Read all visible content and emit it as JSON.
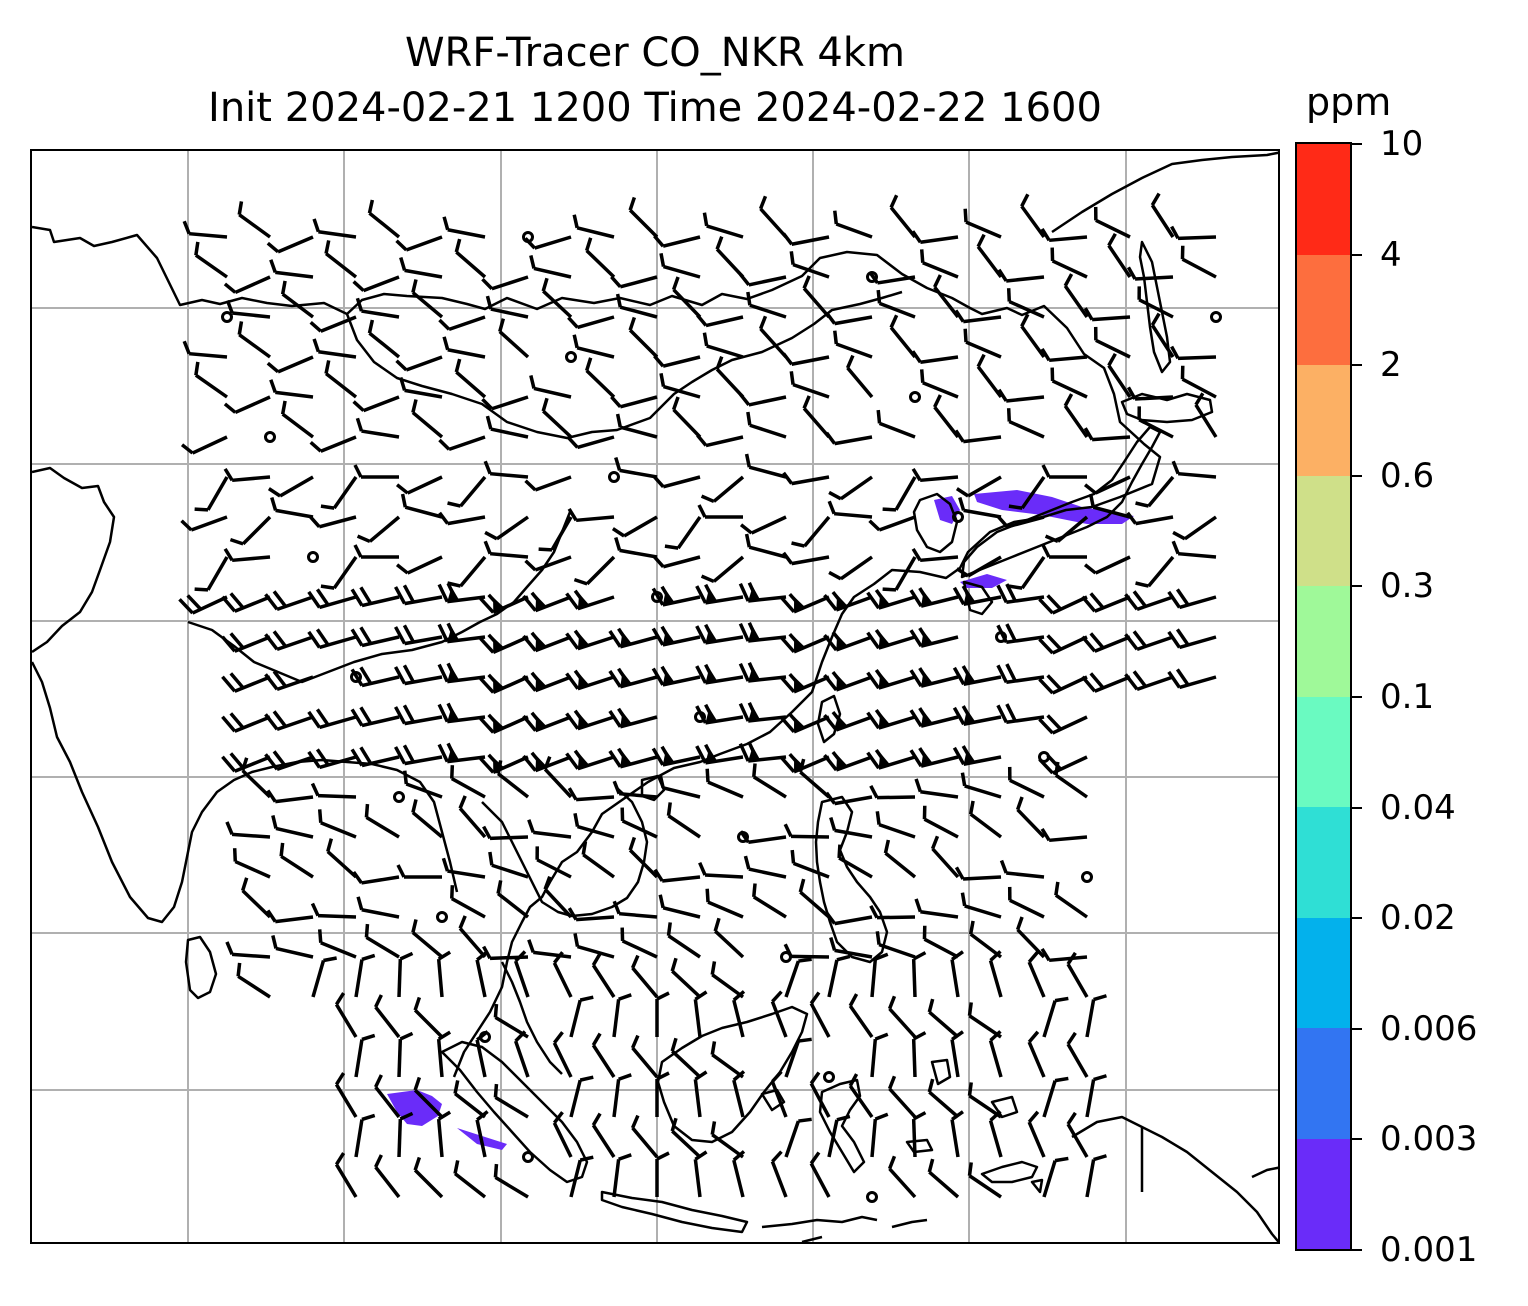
{
  "title": {
    "line1": "WRF-Tracer CO_NKR 4km",
    "line2": "Init 2024-02-21 1200 Time 2024-02-22 1600"
  },
  "colorbar": {
    "unit": "ppm",
    "labels": [
      "0.001",
      "0.003",
      "0.006",
      "0.02",
      "0.04",
      "0.1",
      "0.3",
      "0.6",
      "2",
      "4",
      "10"
    ],
    "colors": [
      "#6a2cf9",
      "#3275f2",
      "#03b1ec",
      "#2fdfd5",
      "#6afac1",
      "#9ff999",
      "#cfe089",
      "#fcb064",
      "#fd6e3e",
      "#ff2a17"
    ]
  },
  "map": {
    "gridlines": "on",
    "grid_color": "#b0b0b0",
    "coastline_color": "#000000",
    "wind_barb_color": "#000000",
    "tracer_color": "#6a2cf9",
    "layers": [
      "coastlines",
      "lat-lon gridlines",
      "wind barbs",
      "tracer concentration"
    ]
  }
}
